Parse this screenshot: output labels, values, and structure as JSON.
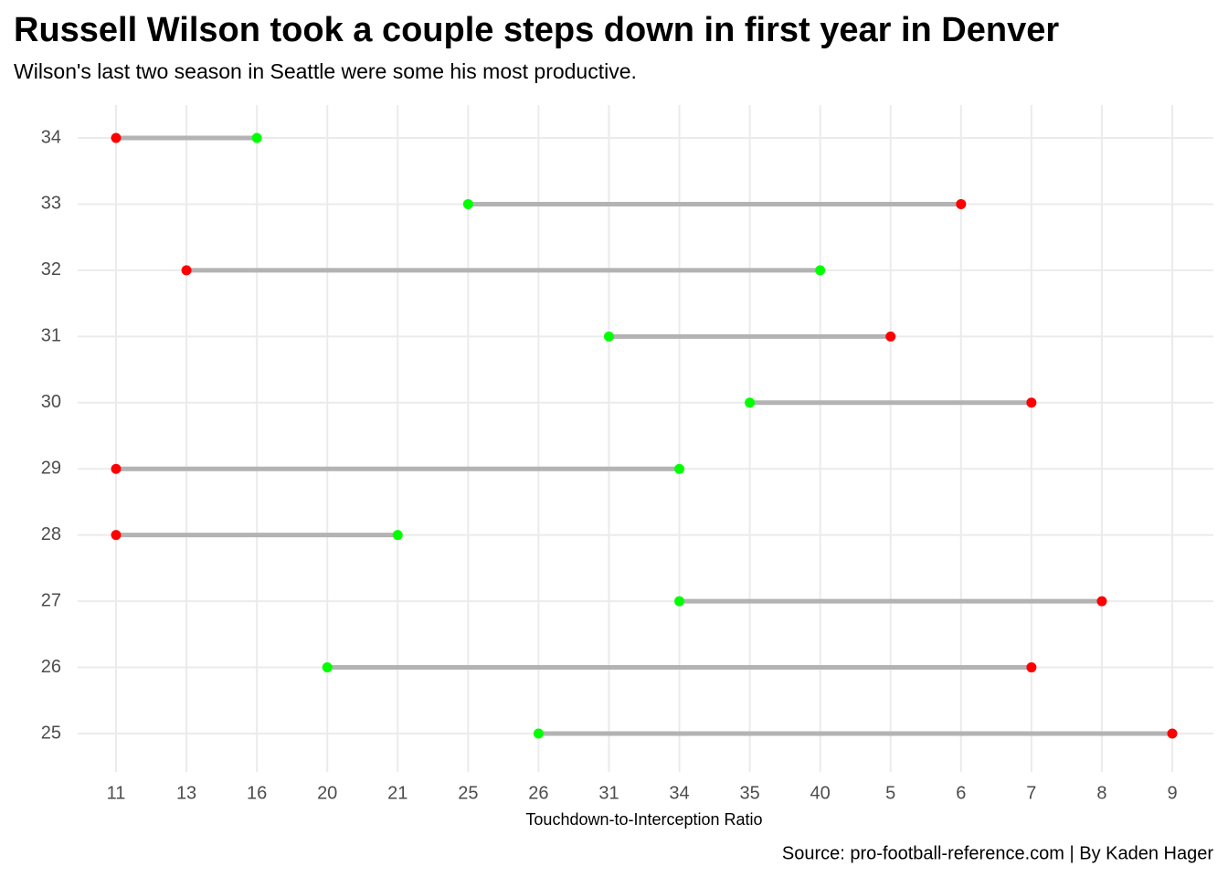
{
  "chart_data": {
    "type": "dumbbell",
    "title": "Russell Wilson took a couple steps down in first year in Denver",
    "subtitle": "Wilson's last two season in Seattle were some his most productive.",
    "x_label": "Touchdown-to-Interception Ratio",
    "caption": "Source: pro-football-reference.com | By Kaden Hager",
    "x_categories": [
      11,
      13,
      16,
      20,
      21,
      25,
      26,
      31,
      34,
      35,
      40,
      5,
      6,
      7,
      8,
      9
    ],
    "categories": [
      25,
      26,
      27,
      28,
      29,
      30,
      31,
      32,
      33,
      34
    ],
    "series": [
      {
        "color": "#00ff00",
        "values": [
          26,
          20,
          34,
          21,
          34,
          35,
          31,
          40,
          25,
          16
        ]
      },
      {
        "color": "#ff0000",
        "values": [
          9,
          7,
          8,
          11,
          11,
          7,
          5,
          13,
          6,
          11
        ]
      }
    ],
    "segment_color": "#b3b3b3",
    "grid": true
  }
}
